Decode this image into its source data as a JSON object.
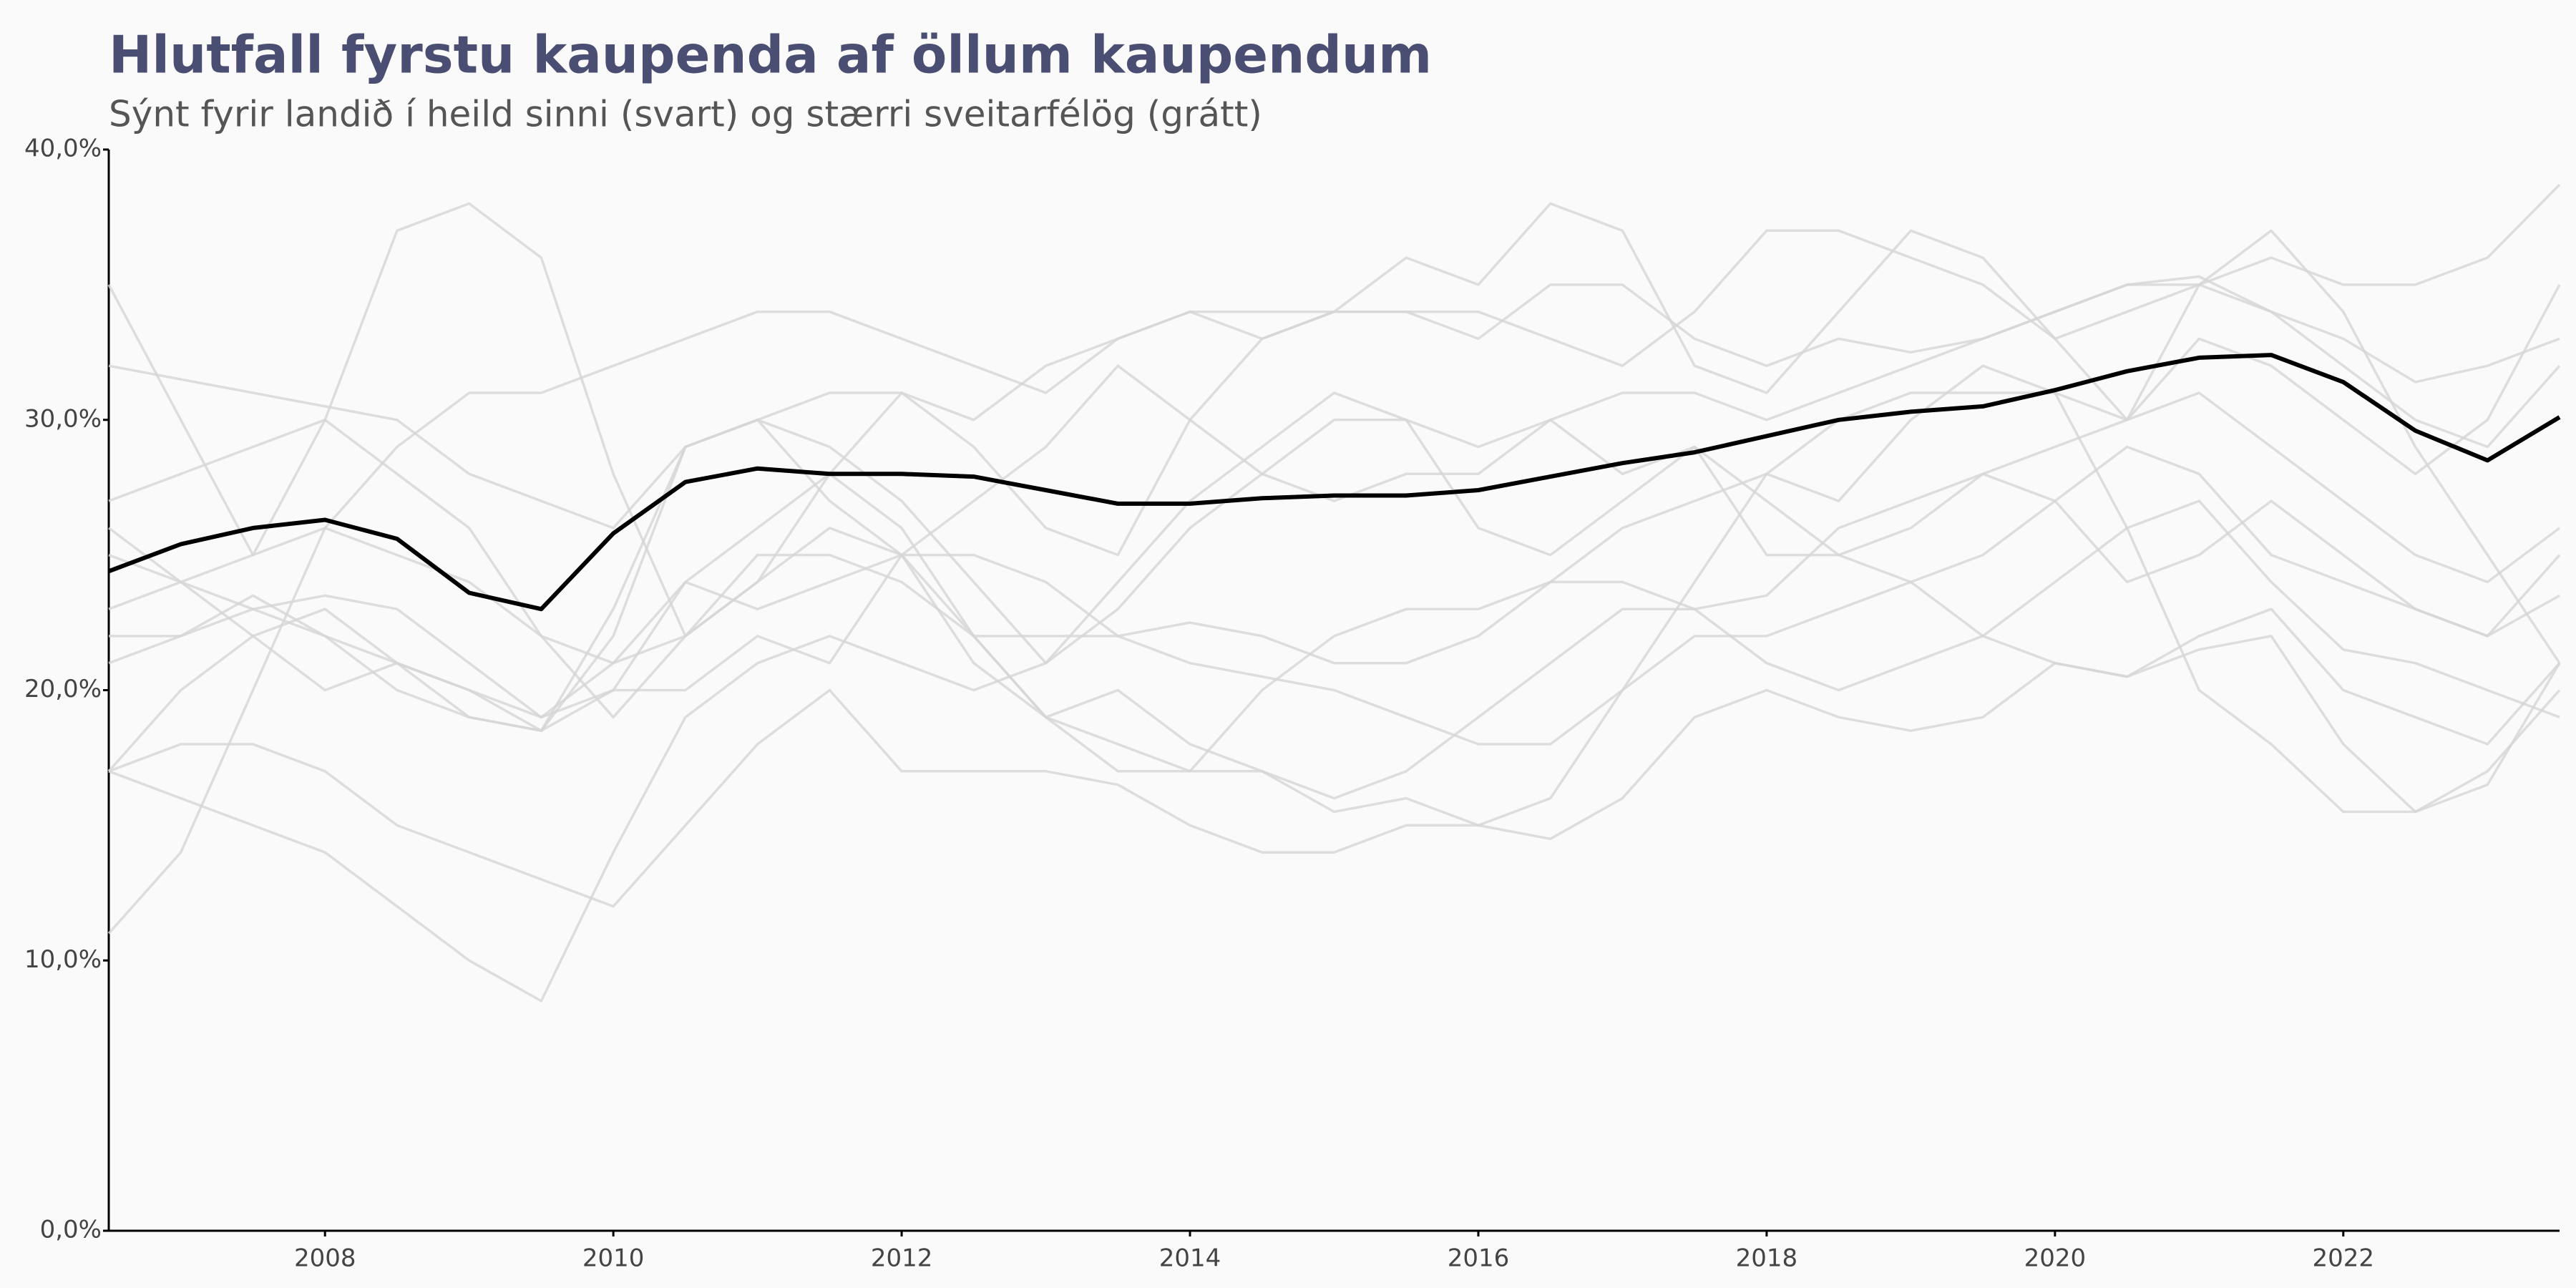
{
  "chart_data": {
    "type": "line",
    "title": "Hlutfall fyrstu kaupenda af öllum kaupendum",
    "subtitle": "Sýnt fyrir landið í heild sinni (svart) og stærri sveitarfélög (grátt)",
    "x": [
      2006.5,
      2007,
      2007.5,
      2008,
      2008.5,
      2009,
      2009.5,
      2010,
      2010.5,
      2011,
      2011.5,
      2012,
      2012.5,
      2013,
      2013.5,
      2014,
      2014.5,
      2015,
      2015.5,
      2016,
      2016.5,
      2017,
      2017.5,
      2018,
      2018.5,
      2019,
      2019.5,
      2020,
      2020.5,
      2021,
      2021.5,
      2022,
      2022.5,
      2023,
      2023.5
    ],
    "xlim": [
      2006.5,
      2023.5
    ],
    "xticks": [
      2008,
      2010,
      2012,
      2014,
      2016,
      2018,
      2020,
      2022
    ],
    "ylim": [
      0,
      40
    ],
    "yticks": [
      {
        "value": 0,
        "label": "0,0%"
      },
      {
        "value": 10,
        "label": "10,0%"
      },
      {
        "value": 20,
        "label": "20,0%"
      },
      {
        "value": 30,
        "label": "30,0%"
      },
      {
        "value": 40,
        "label": "40,0%"
      }
    ],
    "series": [
      {
        "color": "#d6d6d6",
        "values": [
          35,
          30,
          25,
          30,
          37,
          38,
          36,
          28,
          22,
          24,
          28,
          31,
          29,
          26,
          25,
          30,
          33,
          34,
          36,
          35,
          38,
          37,
          32,
          31,
          34,
          37,
          36,
          33,
          30,
          35,
          37,
          34,
          29,
          25,
          21
        ]
      },
      {
        "color": "#d6d6d6",
        "values": [
          11,
          14,
          20,
          26,
          29,
          31,
          31,
          32,
          33,
          34,
          34,
          33,
          32,
          31,
          33,
          34,
          34,
          34,
          34,
          34,
          33,
          32,
          34,
          37,
          37,
          36,
          35,
          33,
          34,
          35,
          36,
          35,
          35,
          36,
          38.7
        ]
      },
      {
        "color": "#d6d6d6",
        "values": [
          17,
          16,
          15,
          14,
          12,
          10,
          8.5,
          14,
          19,
          21,
          22,
          21,
          20,
          21,
          24,
          27,
          29,
          31,
          30,
          26,
          25,
          27,
          29,
          27,
          25,
          26,
          28,
          27,
          24,
          25,
          27,
          25,
          23,
          22,
          25
        ]
      },
      {
        "color": "#d6d6d6",
        "values": [
          23,
          24,
          25,
          26,
          25,
          24,
          22,
          21,
          22,
          25,
          25,
          24,
          22,
          22,
          22,
          22.5,
          22,
          21,
          21,
          22,
          24,
          24,
          23,
          23.5,
          26,
          27,
          28,
          29,
          30,
          31,
          29,
          27,
          25,
          24,
          26
        ]
      },
      {
        "color": "#d6d6d6",
        "values": [
          21,
          22,
          23,
          23.5,
          23,
          21,
          19,
          21,
          24,
          26,
          28,
          26,
          22,
          19,
          17,
          17,
          20,
          22,
          23,
          23,
          24,
          26,
          27,
          28,
          27,
          30,
          32,
          31,
          30,
          33,
          32,
          30,
          28,
          30,
          35
        ]
      },
      {
        "color": "#d6d6d6",
        "values": [
          17,
          18,
          18,
          17,
          15,
          14,
          13,
          12,
          15,
          18,
          20,
          17,
          17,
          17,
          16.5,
          15,
          14,
          14,
          15,
          15,
          14.5,
          16,
          19,
          20,
          19,
          18.5,
          19,
          21,
          20.5,
          21.5,
          22,
          18,
          15.5,
          16.5,
          21
        ]
      },
      {
        "color": "#d6d6d6",
        "values": [
          27,
          28,
          29,
          30,
          28,
          26,
          22,
          19,
          22,
          24,
          26,
          25,
          27,
          29,
          32,
          30,
          28,
          27,
          28,
          28,
          30,
          31,
          31,
          30,
          31,
          32,
          33,
          34,
          35,
          35,
          34,
          32,
          30,
          29,
          32
        ]
      },
      {
        "color": "#d6d6d6",
        "values": [
          32,
          31.5,
          31,
          30.5,
          30,
          28,
          27,
          26,
          29,
          30,
          31,
          31,
          30,
          32,
          33,
          34,
          33,
          34,
          34,
          33,
          35,
          35,
          33,
          32,
          33,
          32.5,
          33,
          34,
          35,
          35.3,
          34,
          33,
          31.4,
          32,
          33
        ]
      },
      {
        "color": "#d6d6d6",
        "values": [
          17,
          20,
          22,
          23,
          21,
          19,
          18.5,
          22,
          29,
          30,
          29,
          27,
          24,
          21,
          23,
          26,
          28,
          30,
          30,
          29,
          30,
          28,
          29,
          25,
          25,
          24,
          22,
          21,
          20.5,
          22,
          23,
          20,
          19,
          18,
          21
        ]
      },
      {
        "color": "#d6d6d6",
        "values": [
          26,
          24,
          23,
          22,
          20,
          19,
          18.5,
          20,
          24,
          23,
          24,
          25,
          25,
          24,
          22,
          21,
          20.5,
          20,
          19,
          18,
          18,
          20,
          22,
          22,
          23,
          24,
          25,
          27,
          29,
          28,
          25,
          24,
          23,
          22,
          23.5
        ]
      },
      {
        "color": "#d6d6d6",
        "values": [
          25,
          24,
          22,
          20,
          21,
          20,
          18.5,
          23,
          29,
          30,
          27,
          25,
          22,
          19,
          18,
          17,
          17,
          15.5,
          16,
          15,
          16,
          20,
          24,
          28,
          30,
          31,
          31,
          31,
          26,
          20,
          18,
          15.5,
          15.5,
          17,
          20
        ]
      },
      {
        "color": "#d6d6d6",
        "values": [
          22,
          22,
          23.5,
          22,
          21,
          20,
          19,
          20,
          20,
          22,
          21,
          25,
          21,
          19,
          20,
          18,
          17,
          16,
          17,
          19,
          21,
          23,
          23,
          21,
          20,
          21,
          22,
          24,
          26,
          27,
          24,
          21.5,
          21,
          20,
          19
        ]
      },
      {
        "color": "#000000",
        "values": [
          24.4,
          25.4,
          26.0,
          26.3,
          25.6,
          23.6,
          23.0,
          25.8,
          27.7,
          28.2,
          28.0,
          28.0,
          27.9,
          27.4,
          26.9,
          26.9,
          27.1,
          27.2,
          27.2,
          27.4,
          27.9,
          28.4,
          28.8,
          29.4,
          30.0,
          30.3,
          30.5,
          31.1,
          31.8,
          32.3,
          32.4,
          31.4,
          29.6,
          28.5,
          30.1
        ]
      }
    ]
  }
}
